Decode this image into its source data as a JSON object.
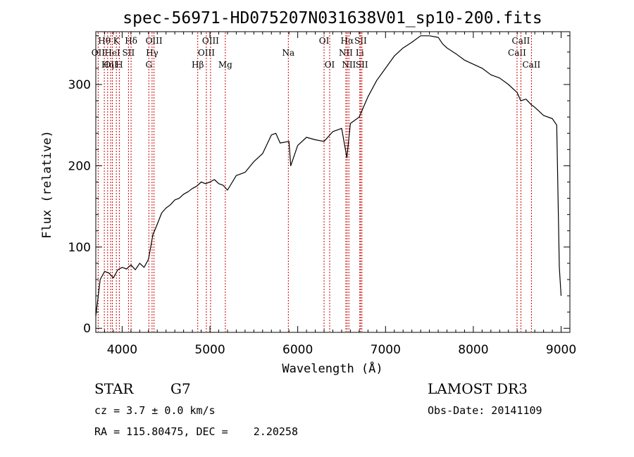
{
  "chart_data": {
    "type": "line",
    "title": "spec-56971-HD075207N031638V01_sp10-200.fits",
    "xlabel": "Wavelength (Å)",
    "ylabel": "Flux (relative)",
    "xlim": [
      3700,
      9100
    ],
    "ylim": [
      -5,
      365
    ],
    "xticks": [
      4000,
      5000,
      6000,
      7000,
      8000,
      9000
    ],
    "yticks": [
      0,
      100,
      200,
      300
    ],
    "spectrum_x": [
      3700,
      3750,
      3800,
      3850,
      3900,
      3950,
      4000,
      4050,
      4100,
      4150,
      4200,
      4250,
      4300,
      4350,
      4400,
      4450,
      4500,
      4550,
      4600,
      4650,
      4700,
      4750,
      4800,
      4850,
      4900,
      4950,
      5000,
      5050,
      5100,
      5150,
      5200,
      5300,
      5400,
      5500,
      5600,
      5700,
      5750,
      5800,
      5900,
      5920,
      6000,
      6100,
      6200,
      6300,
      6400,
      6500,
      6560,
      6600,
      6700,
      6800,
      6900,
      7000,
      7100,
      7200,
      7300,
      7400,
      7500,
      7600,
      7650,
      7700,
      7800,
      7900,
      8000,
      8100,
      8200,
      8300,
      8400,
      8500,
      8540,
      8600,
      8662,
      8700,
      8800,
      8900,
      8950,
      8980,
      9000
    ],
    "spectrum_y": [
      15,
      60,
      70,
      68,
      62,
      72,
      75,
      73,
      78,
      72,
      80,
      75,
      85,
      115,
      128,
      142,
      148,
      152,
      158,
      160,
      165,
      168,
      172,
      175,
      180,
      178,
      180,
      183,
      178,
      176,
      170,
      188,
      192,
      205,
      215,
      238,
      240,
      228,
      230,
      200,
      225,
      235,
      232,
      230,
      242,
      246,
      210,
      252,
      260,
      285,
      305,
      320,
      335,
      345,
      352,
      360,
      360,
      358,
      350,
      345,
      338,
      330,
      325,
      320,
      312,
      308,
      300,
      290,
      280,
      282,
      275,
      272,
      262,
      258,
      250,
      75,
      40
    ],
    "spectral_lines": [
      {
        "wave": 3727,
        "label": "OII",
        "row": 2
      },
      {
        "wave": 3797,
        "label": "Hθ",
        "row": 1
      },
      {
        "wave": 3835,
        "label": "Hη",
        "row": 3
      },
      {
        "wave": 3869,
        "label": "OII",
        "row": 3
      },
      {
        "wave": 3889,
        "label": "HeI",
        "row": 2
      },
      {
        "wave": 3934,
        "label": "K",
        "row": 1
      },
      {
        "wave": 3968,
        "label": "H",
        "row": 3
      },
      {
        "wave": 4072,
        "label": "SII",
        "row": 2
      },
      {
        "wave": 4102,
        "label": "Hδ",
        "row": 1
      },
      {
        "wave": 4304,
        "label": "G",
        "row": 3
      },
      {
        "wave": 4341,
        "label": "Hγ",
        "row": 2
      },
      {
        "wave": 4363,
        "label": "OIII",
        "row": 1
      },
      {
        "wave": 4861,
        "label": "Hβ",
        "row": 3
      },
      {
        "wave": 4959,
        "label": "OIII",
        "row": 2
      },
      {
        "wave": 5007,
        "label": "OIII",
        "row": 1
      },
      {
        "wave": 5175,
        "label": "Mg",
        "row": 3
      },
      {
        "wave": 5893,
        "label": "Na",
        "row": 2
      },
      {
        "wave": 6300,
        "label": "OI",
        "row": 1
      },
      {
        "wave": 6364,
        "label": "OI",
        "row": 3
      },
      {
        "wave": 6548,
        "label": "NII",
        "row": 2
      },
      {
        "wave": 6563,
        "label": "Hα",
        "row": 1
      },
      {
        "wave": 6583,
        "label": "NII",
        "row": 3
      },
      {
        "wave": 6707,
        "label": "Li",
        "row": 2
      },
      {
        "wave": 6716,
        "label": "SII",
        "row": 1
      },
      {
        "wave": 6731,
        "label": "SII",
        "row": 3
      },
      {
        "wave": 8498,
        "label": "CaII",
        "row": 2
      },
      {
        "wave": 8542,
        "label": "CaII",
        "row": 1
      },
      {
        "wave": 8662,
        "label": "CaII",
        "row": 3
      }
    ]
  },
  "info": {
    "object_class": "STAR",
    "subclass": "G7",
    "survey": "LAMOST DR3",
    "cz": "cz = 3.7 ± 0.0 km/s",
    "obs_date": "Obs-Date: 20141109",
    "coords": "RA = 115.80475, DEC =    2.20258"
  },
  "colors": {
    "axis": "#000000",
    "spectrum": "#000000",
    "line_marker": "#cc0000"
  }
}
